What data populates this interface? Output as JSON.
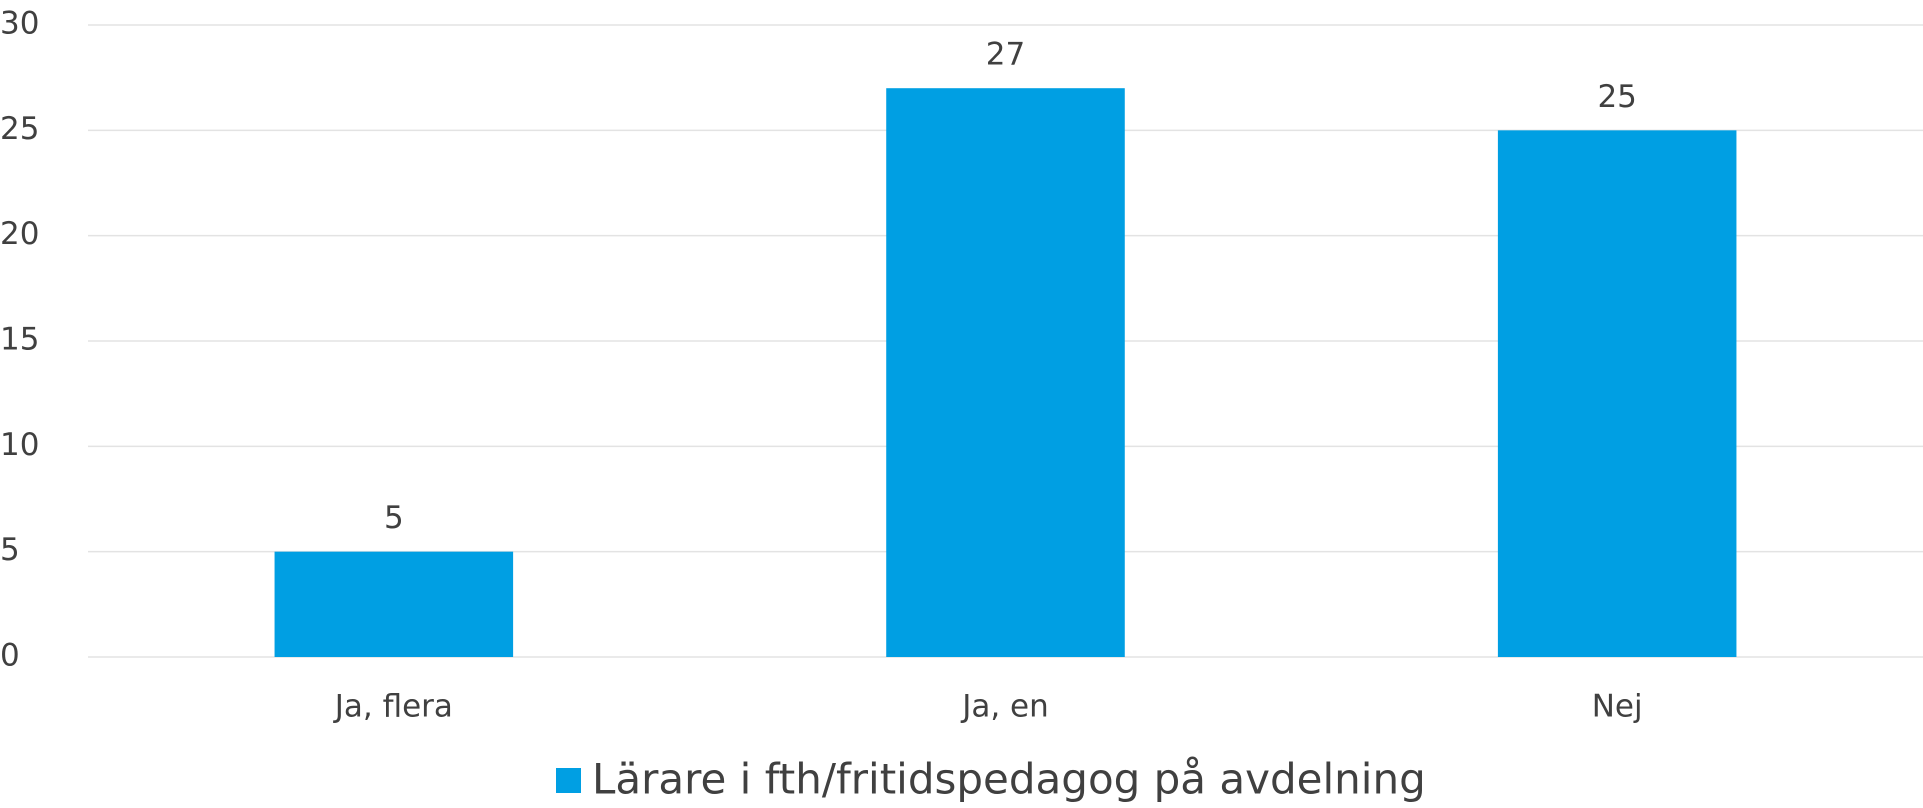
{
  "chart_data": {
    "type": "bar",
    "categories": [
      "Ja, flera",
      "Ja, en",
      "Nej"
    ],
    "series": [
      {
        "name": "Lärare i fth/fritidspedagog på avdelning",
        "color": "#009fe3",
        "values": [
          5,
          27,
          25
        ]
      }
    ],
    "ylim": [
      0,
      30
    ],
    "yticks": [
      0,
      5,
      10,
      15,
      20,
      25,
      30
    ],
    "grid": true,
    "legend": "bottom"
  }
}
